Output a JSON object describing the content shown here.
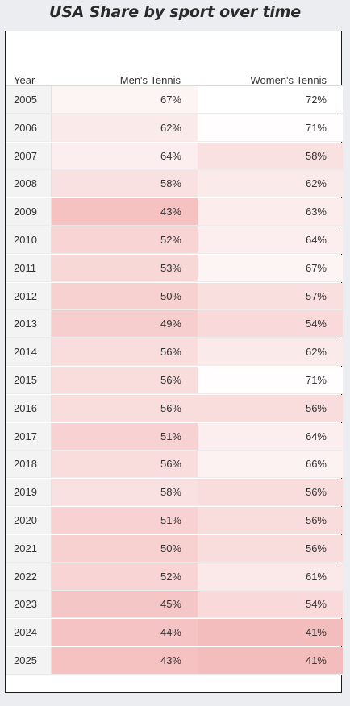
{
  "title": "USA Share by sport over time",
  "headers": {
    "year": "Year",
    "men": "Men's Tennis",
    "women": "Women's Tennis"
  },
  "chart_data": {
    "type": "table",
    "title": "USA Share by sport over time",
    "columns": [
      "Year",
      "Men's Tennis",
      "Women's Tennis"
    ],
    "rows": [
      {
        "year": "2005",
        "men": "67%",
        "women": "72%"
      },
      {
        "year": "2006",
        "men": "62%",
        "women": "71%"
      },
      {
        "year": "2007",
        "men": "64%",
        "women": "58%"
      },
      {
        "year": "2008",
        "men": "58%",
        "women": "62%"
      },
      {
        "year": "2009",
        "men": "43%",
        "women": "63%"
      },
      {
        "year": "2010",
        "men": "52%",
        "women": "64%"
      },
      {
        "year": "2011",
        "men": "53%",
        "women": "67%"
      },
      {
        "year": "2012",
        "men": "50%",
        "women": "57%"
      },
      {
        "year": "2013",
        "men": "49%",
        "women": "54%"
      },
      {
        "year": "2014",
        "men": "56%",
        "women": "62%"
      },
      {
        "year": "2015",
        "men": "56%",
        "women": "71%"
      },
      {
        "year": "2016",
        "men": "56%",
        "women": "56%"
      },
      {
        "year": "2017",
        "men": "51%",
        "women": "64%"
      },
      {
        "year": "2018",
        "men": "56%",
        "women": "66%"
      },
      {
        "year": "2019",
        "men": "58%",
        "women": "56%"
      },
      {
        "year": "2020",
        "men": "51%",
        "women": "56%"
      },
      {
        "year": "2021",
        "men": "50%",
        "women": "56%"
      },
      {
        "year": "2022",
        "men": "52%",
        "women": "61%"
      },
      {
        "year": "2023",
        "men": "45%",
        "women": "54%"
      },
      {
        "year": "2024",
        "men": "44%",
        "women": "41%"
      },
      {
        "year": "2025",
        "men": "43%",
        "women": "41%"
      }
    ],
    "heatmap_colors": {
      "high": "#ffffff",
      "low": "#f4bdbd"
    }
  }
}
